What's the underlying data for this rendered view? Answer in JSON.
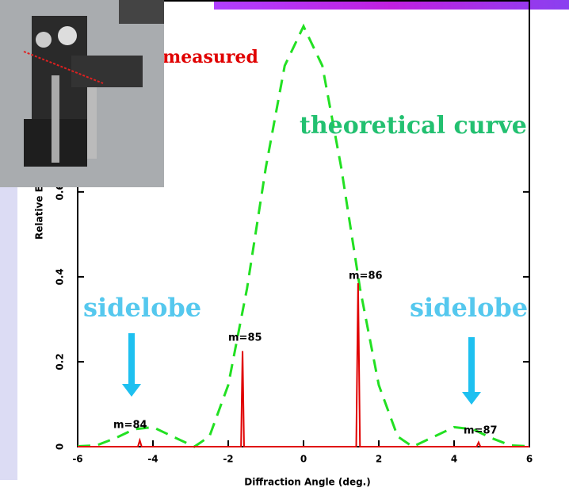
{
  "chart_data": {
    "type": "line",
    "xlabel": "Diffraction Angle (deg.)",
    "ylabel": "Relative Efficiency",
    "xlim": [
      -6,
      6
    ],
    "xticks": [
      -6,
      -4,
      -2,
      0,
      2,
      4,
      6
    ],
    "ylim": [
      0,
      1.05
    ],
    "yticks": [
      0,
      0.2,
      0.4,
      0.6
    ],
    "series": [
      {
        "name": "theoretical curve",
        "color": "#22e022",
        "dash": true,
        "x": [
          -6,
          -5.5,
          -5,
          -4.5,
          -4,
          -3.5,
          -2.9,
          -2.5,
          -2,
          -1.5,
          -1,
          -0.5,
          0,
          0.5,
          1,
          1.5,
          2,
          2.5,
          2.9,
          3.5,
          4,
          4.5,
          5,
          5.5,
          6
        ],
        "values": [
          0.001,
          0.003,
          0.02,
          0.041,
          0.046,
          0.025,
          0,
          0.024,
          0.145,
          0.373,
          0.658,
          0.897,
          0.99,
          0.897,
          0.658,
          0.373,
          0.145,
          0.024,
          0,
          0.025,
          0.046,
          0.041,
          0.02,
          0.003,
          0.001
        ]
      },
      {
        "name": "measured",
        "color": "#e00000",
        "dash": false,
        "x": [
          -6,
          -4.4,
          -4.35,
          -4.3,
          -1.66,
          -1.62,
          -1.58,
          1.4,
          1.45,
          1.5,
          4.6,
          4.65,
          4.7,
          6
        ],
        "values": [
          0,
          0,
          0.015,
          0,
          0,
          0.225,
          0,
          0,
          0.385,
          0,
          0,
          0.01,
          0,
          0
        ]
      }
    ],
    "annotations": [
      "measured",
      "theoretical curve",
      "sidelobe",
      "sidelobe",
      "m=84",
      "m=85",
      "m=86",
      "m=87"
    ]
  }
}
